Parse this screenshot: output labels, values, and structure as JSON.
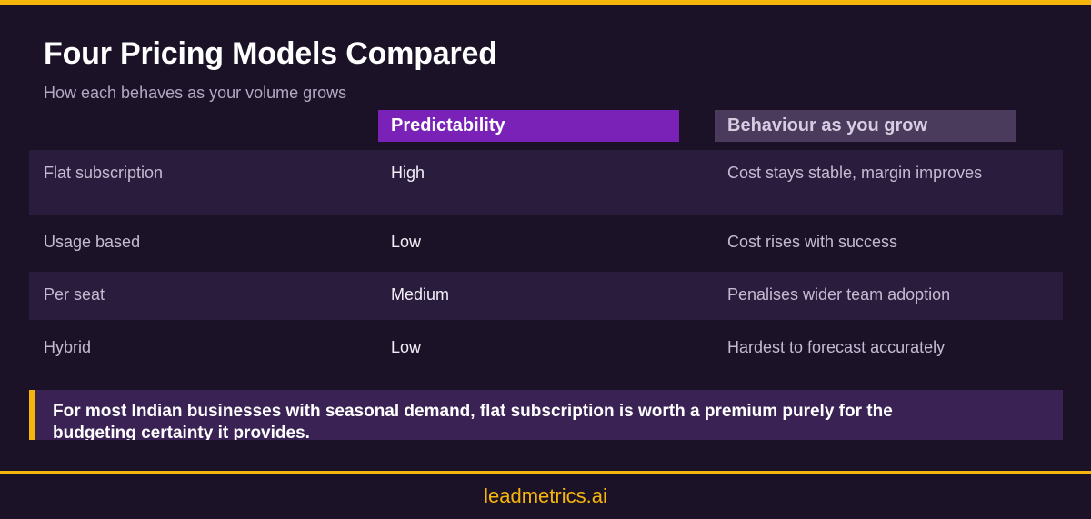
{
  "colors": {
    "accent": "#f5b50a",
    "background": "#1c1228",
    "predictability_header": "#7a22b8",
    "behaviour_header": "#4a3a5c",
    "row_shade": "#2a1c3d",
    "callout_bg": "#3a2254"
  },
  "header": {
    "title": "Four Pricing Models Compared",
    "subtitle": "How each behaves as your volume grows"
  },
  "table": {
    "columns": [
      "Predictability",
      "Behaviour as you grow"
    ],
    "rows": [
      {
        "model": "Flat subscription",
        "predictability": "High",
        "behaviour": "Cost stays stable, margin improves"
      },
      {
        "model": "Usage based",
        "predictability": "Low",
        "behaviour": "Cost rises with success"
      },
      {
        "model": "Per seat",
        "predictability": "Medium",
        "behaviour": "Penalises wider team adoption"
      },
      {
        "model": "Hybrid",
        "predictability": "Low",
        "behaviour": "Hardest to forecast accurately"
      }
    ]
  },
  "callout": {
    "text": "For most Indian businesses with seasonal demand, flat subscription is worth a premium purely for the budgeting certainty it provides."
  },
  "footer": {
    "brand": "leadmetrics.ai"
  }
}
